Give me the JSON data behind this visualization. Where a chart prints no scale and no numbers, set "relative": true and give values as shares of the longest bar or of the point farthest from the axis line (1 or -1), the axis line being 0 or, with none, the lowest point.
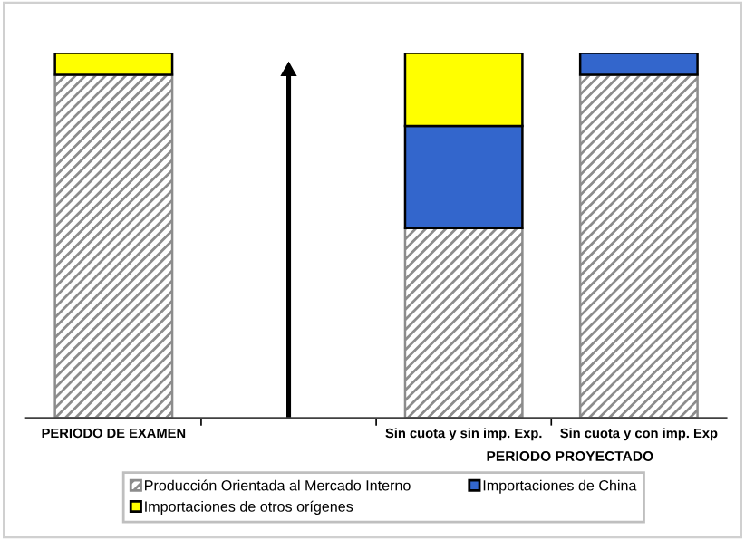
{
  "chart_data": {
    "type": "bar",
    "stacked": true,
    "relative": true,
    "categories": [
      "PERIODO DE EXAMEN",
      null,
      "Sin cuota y sin imp. Exp.",
      "Sin cuota y con imp. Exp"
    ],
    "series": [
      {
        "name": "Producción Orientada al Mercado Interno",
        "color": "#8c8c8c",
        "values": [
          0.94,
          0,
          0.52,
          0.94
        ]
      },
      {
        "name": "Importaciones de China",
        "color": "#3366cc",
        "values": [
          0,
          0,
          0.28,
          0.06
        ]
      },
      {
        "name": "Importaciones de otros orígenes",
        "color": "#ffff00",
        "values": [
          0.06,
          0,
          0.2,
          0
        ]
      }
    ],
    "annotations": [
      "PERIODO PROYECTADO"
    ],
    "legend": "bottom",
    "grid": false
  }
}
